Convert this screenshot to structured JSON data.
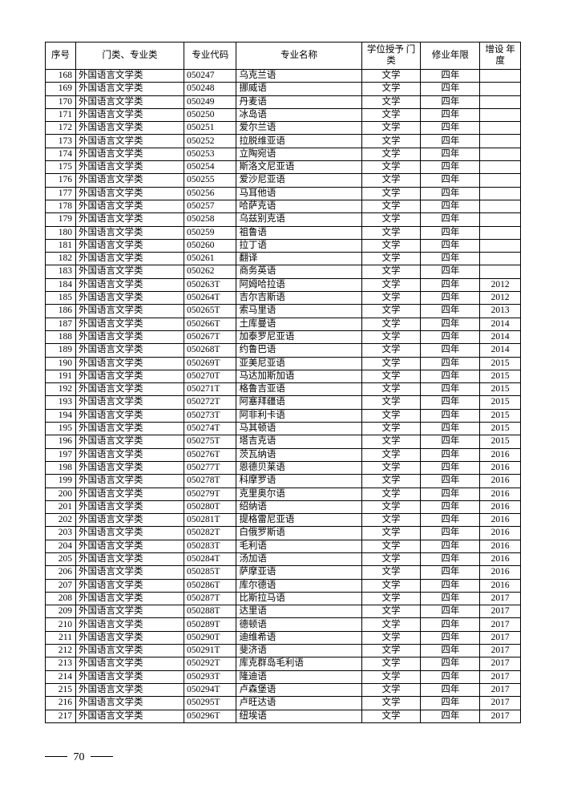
{
  "page_number": "70",
  "table": {
    "headers": {
      "seq": "序号",
      "cat": "门类、专业类",
      "code": "专业代码",
      "name": "专业名称",
      "deg": "学位授予\n门类",
      "dur": "修业年限",
      "year": "增设\n年度"
    },
    "rows": [
      {
        "seq": "168",
        "cat": "外国语言文学类",
        "code": "050247",
        "name": "乌克兰语",
        "deg": "文学",
        "dur": "四年",
        "year": ""
      },
      {
        "seq": "169",
        "cat": "外国语言文学类",
        "code": "050248",
        "name": "挪威语",
        "deg": "文学",
        "dur": "四年",
        "year": ""
      },
      {
        "seq": "170",
        "cat": "外国语言文学类",
        "code": "050249",
        "name": "丹麦语",
        "deg": "文学",
        "dur": "四年",
        "year": ""
      },
      {
        "seq": "171",
        "cat": "外国语言文学类",
        "code": "050250",
        "name": "冰岛语",
        "deg": "文学",
        "dur": "四年",
        "year": ""
      },
      {
        "seq": "172",
        "cat": "外国语言文学类",
        "code": "050251",
        "name": "爱尔兰语",
        "deg": "文学",
        "dur": "四年",
        "year": ""
      },
      {
        "seq": "173",
        "cat": "外国语言文学类",
        "code": "050252",
        "name": "拉脱维亚语",
        "deg": "文学",
        "dur": "四年",
        "year": ""
      },
      {
        "seq": "174",
        "cat": "外国语言文学类",
        "code": "050253",
        "name": "立陶宛语",
        "deg": "文学",
        "dur": "四年",
        "year": ""
      },
      {
        "seq": "175",
        "cat": "外国语言文学类",
        "code": "050254",
        "name": "斯洛文尼亚语",
        "deg": "文学",
        "dur": "四年",
        "year": ""
      },
      {
        "seq": "176",
        "cat": "外国语言文学类",
        "code": "050255",
        "name": "爱沙尼亚语",
        "deg": "文学",
        "dur": "四年",
        "year": ""
      },
      {
        "seq": "177",
        "cat": "外国语言文学类",
        "code": "050256",
        "name": "马耳他语",
        "deg": "文学",
        "dur": "四年",
        "year": ""
      },
      {
        "seq": "178",
        "cat": "外国语言文学类",
        "code": "050257",
        "name": "哈萨克语",
        "deg": "文学",
        "dur": "四年",
        "year": ""
      },
      {
        "seq": "179",
        "cat": "外国语言文学类",
        "code": "050258",
        "name": "乌兹别克语",
        "deg": "文学",
        "dur": "四年",
        "year": ""
      },
      {
        "seq": "180",
        "cat": "外国语言文学类",
        "code": "050259",
        "name": "祖鲁语",
        "deg": "文学",
        "dur": "四年",
        "year": ""
      },
      {
        "seq": "181",
        "cat": "外国语言文学类",
        "code": "050260",
        "name": "拉丁语",
        "deg": "文学",
        "dur": "四年",
        "year": ""
      },
      {
        "seq": "182",
        "cat": "外国语言文学类",
        "code": "050261",
        "name": "翻译",
        "deg": "文学",
        "dur": "四年",
        "year": ""
      },
      {
        "seq": "183",
        "cat": "外国语言文学类",
        "code": "050262",
        "name": "商务英语",
        "deg": "文学",
        "dur": "四年",
        "year": ""
      },
      {
        "seq": "184",
        "cat": "外国语言文学类",
        "code": "050263T",
        "name": "阿姆哈拉语",
        "deg": "文学",
        "dur": "四年",
        "year": "2012"
      },
      {
        "seq": "185",
        "cat": "外国语言文学类",
        "code": "050264T",
        "name": "吉尔吉斯语",
        "deg": "文学",
        "dur": "四年",
        "year": "2012"
      },
      {
        "seq": "186",
        "cat": "外国语言文学类",
        "code": "050265T",
        "name": "索马里语",
        "deg": "文学",
        "dur": "四年",
        "year": "2013"
      },
      {
        "seq": "187",
        "cat": "外国语言文学类",
        "code": "050266T",
        "name": "土库曼语",
        "deg": "文学",
        "dur": "四年",
        "year": "2014"
      },
      {
        "seq": "188",
        "cat": "外国语言文学类",
        "code": "050267T",
        "name": "加泰罗尼亚语",
        "deg": "文学",
        "dur": "四年",
        "year": "2014"
      },
      {
        "seq": "189",
        "cat": "外国语言文学类",
        "code": "050268T",
        "name": "约鲁巴语",
        "deg": "文学",
        "dur": "四年",
        "year": "2014"
      },
      {
        "seq": "190",
        "cat": "外国语言文学类",
        "code": "050269T",
        "name": "亚美尼亚语",
        "deg": "文学",
        "dur": "四年",
        "year": "2015"
      },
      {
        "seq": "191",
        "cat": "外国语言文学类",
        "code": "050270T",
        "name": "马达加斯加语",
        "deg": "文学",
        "dur": "四年",
        "year": "2015"
      },
      {
        "seq": "192",
        "cat": "外国语言文学类",
        "code": "050271T",
        "name": "格鲁吉亚语",
        "deg": "文学",
        "dur": "四年",
        "year": "2015"
      },
      {
        "seq": "193",
        "cat": "外国语言文学类",
        "code": "050272T",
        "name": "阿塞拜疆语",
        "deg": "文学",
        "dur": "四年",
        "year": "2015"
      },
      {
        "seq": "194",
        "cat": "外国语言文学类",
        "code": "050273T",
        "name": "阿非利卡语",
        "deg": "文学",
        "dur": "四年",
        "year": "2015"
      },
      {
        "seq": "195",
        "cat": "外国语言文学类",
        "code": "050274T",
        "name": "马其顿语",
        "deg": "文学",
        "dur": "四年",
        "year": "2015"
      },
      {
        "seq": "196",
        "cat": "外国语言文学类",
        "code": "050275T",
        "name": "塔吉克语",
        "deg": "文学",
        "dur": "四年",
        "year": "2015"
      },
      {
        "seq": "197",
        "cat": "外国语言文学类",
        "code": "050276T",
        "name": "茨瓦纳语",
        "deg": "文学",
        "dur": "四年",
        "year": "2016"
      },
      {
        "seq": "198",
        "cat": "外国语言文学类",
        "code": "050277T",
        "name": "恩德贝莱语",
        "deg": "文学",
        "dur": "四年",
        "year": "2016"
      },
      {
        "seq": "199",
        "cat": "外国语言文学类",
        "code": "050278T",
        "name": "科摩罗语",
        "deg": "文学",
        "dur": "四年",
        "year": "2016"
      },
      {
        "seq": "200",
        "cat": "外国语言文学类",
        "code": "050279T",
        "name": "克里奥尔语",
        "deg": "文学",
        "dur": "四年",
        "year": "2016"
      },
      {
        "seq": "201",
        "cat": "外国语言文学类",
        "code": "050280T",
        "name": "绍纳语",
        "deg": "文学",
        "dur": "四年",
        "year": "2016"
      },
      {
        "seq": "202",
        "cat": "外国语言文学类",
        "code": "050281T",
        "name": "提格雷尼亚语",
        "deg": "文学",
        "dur": "四年",
        "year": "2016"
      },
      {
        "seq": "203",
        "cat": "外国语言文学类",
        "code": "050282T",
        "name": "白俄罗斯语",
        "deg": "文学",
        "dur": "四年",
        "year": "2016"
      },
      {
        "seq": "204",
        "cat": "外国语言文学类",
        "code": "050283T",
        "name": "毛利语",
        "deg": "文学",
        "dur": "四年",
        "year": "2016"
      },
      {
        "seq": "205",
        "cat": "外国语言文学类",
        "code": "050284T",
        "name": "汤加语",
        "deg": "文学",
        "dur": "四年",
        "year": "2016"
      },
      {
        "seq": "206",
        "cat": "外国语言文学类",
        "code": "050285T",
        "name": "萨摩亚语",
        "deg": "文学",
        "dur": "四年",
        "year": "2016"
      },
      {
        "seq": "207",
        "cat": "外国语言文学类",
        "code": "050286T",
        "name": "库尔德语",
        "deg": "文学",
        "dur": "四年",
        "year": "2016"
      },
      {
        "seq": "208",
        "cat": "外国语言文学类",
        "code": "050287T",
        "name": "比斯拉马语",
        "deg": "文学",
        "dur": "四年",
        "year": "2017"
      },
      {
        "seq": "209",
        "cat": "外国语言文学类",
        "code": "050288T",
        "name": "达里语",
        "deg": "文学",
        "dur": "四年",
        "year": "2017"
      },
      {
        "seq": "210",
        "cat": "外国语言文学类",
        "code": "050289T",
        "name": "德顿语",
        "deg": "文学",
        "dur": "四年",
        "year": "2017"
      },
      {
        "seq": "211",
        "cat": "外国语言文学类",
        "code": "050290T",
        "name": "迪维希语",
        "deg": "文学",
        "dur": "四年",
        "year": "2017"
      },
      {
        "seq": "212",
        "cat": "外国语言文学类",
        "code": "050291T",
        "name": "斐济语",
        "deg": "文学",
        "dur": "四年",
        "year": "2017"
      },
      {
        "seq": "213",
        "cat": "外国语言文学类",
        "code": "050292T",
        "name": "库克群岛毛利语",
        "deg": "文学",
        "dur": "四年",
        "year": "2017"
      },
      {
        "seq": "214",
        "cat": "外国语言文学类",
        "code": "050293T",
        "name": "隆迪语",
        "deg": "文学",
        "dur": "四年",
        "year": "2017"
      },
      {
        "seq": "215",
        "cat": "外国语言文学类",
        "code": "050294T",
        "name": "卢森堡语",
        "deg": "文学",
        "dur": "四年",
        "year": "2017"
      },
      {
        "seq": "216",
        "cat": "外国语言文学类",
        "code": "050295T",
        "name": "卢旺达语",
        "deg": "文学",
        "dur": "四年",
        "year": "2017"
      },
      {
        "seq": "217",
        "cat": "外国语言文学类",
        "code": "050296T",
        "name": "纽埃语",
        "deg": "文学",
        "dur": "四年",
        "year": "2017"
      }
    ]
  }
}
